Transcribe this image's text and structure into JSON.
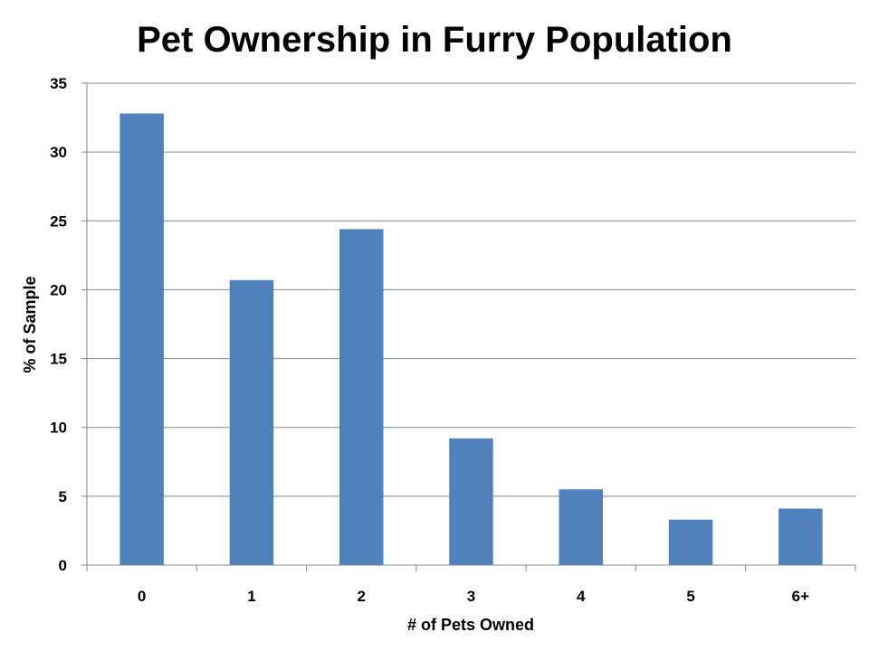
{
  "chart_data": {
    "type": "bar",
    "title": "Pet Ownership in Furry Population",
    "xlabel": "# of Pets Owned",
    "ylabel": "% of Sample",
    "categories": [
      "0",
      "1",
      "2",
      "3",
      "4",
      "5",
      "6+"
    ],
    "values": [
      32.8,
      20.7,
      24.4,
      9.2,
      5.5,
      3.3,
      4.1
    ],
    "ylim": [
      0,
      35
    ],
    "yticks": [
      0,
      5,
      10,
      15,
      20,
      25,
      30,
      35
    ],
    "grid": true,
    "legend": "none",
    "colors": {
      "bar": "#4F81BD",
      "grid": "#868686",
      "axis": "#868686"
    }
  }
}
